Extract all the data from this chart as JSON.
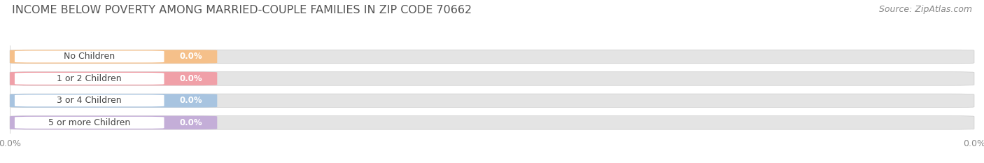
{
  "title": "INCOME BELOW POVERTY AMONG MARRIED-COUPLE FAMILIES IN ZIP CODE 70662",
  "source": "Source: ZipAtlas.com",
  "categories": [
    "No Children",
    "1 or 2 Children",
    "3 or 4 Children",
    "5 or more Children"
  ],
  "values": [
    0.0,
    0.0,
    0.0,
    0.0
  ],
  "bar_colors": [
    "#f5c08a",
    "#f0a0a8",
    "#a8c4e0",
    "#c4aed8"
  ],
  "background_color": "#ffffff",
  "bar_bg_color": "#e4e4e4",
  "label_bg_color": "#f8f8f8",
  "title_fontsize": 11.5,
  "label_fontsize": 9,
  "value_fontsize": 8.5,
  "tick_fontsize": 9,
  "source_fontsize": 9,
  "title_color": "#555555",
  "label_color": "#444444",
  "tick_color": "#888888",
  "source_color": "#888888"
}
